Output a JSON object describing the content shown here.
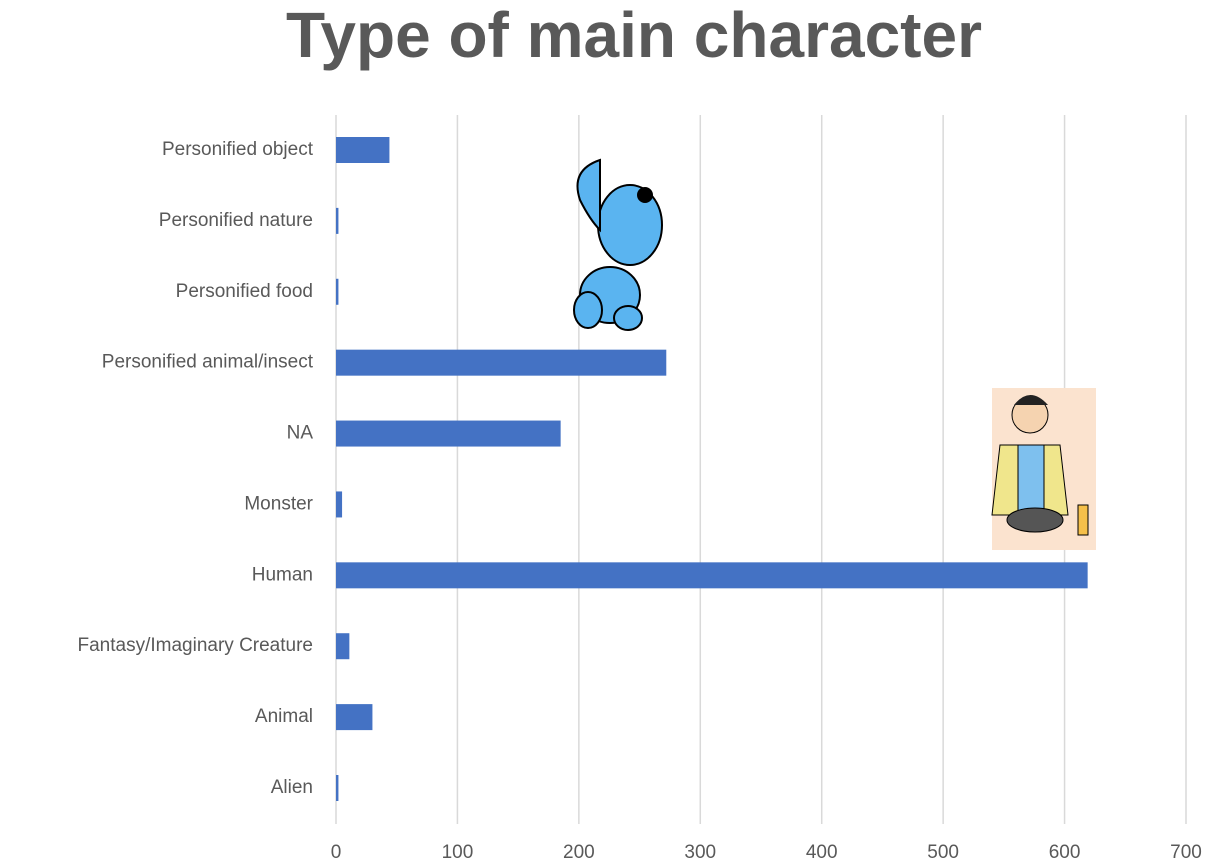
{
  "chart_data": {
    "type": "bar",
    "orientation": "horizontal",
    "title": "Type of main character",
    "categories": [
      "Alien",
      "Animal",
      "Fantasy/Imaginary Creature",
      "Human",
      "Monster",
      "NA",
      "Personified animal/insect",
      "Personified food",
      "Personified nature",
      "Personified object"
    ],
    "values": [
      2,
      30,
      11,
      619,
      5,
      185,
      272,
      2,
      2,
      44
    ],
    "color": "#4472c4",
    "xlim": [
      0,
      700
    ],
    "xticks": [
      0,
      100,
      200,
      300,
      400,
      500,
      600,
      700
    ],
    "grid": true
  }
}
